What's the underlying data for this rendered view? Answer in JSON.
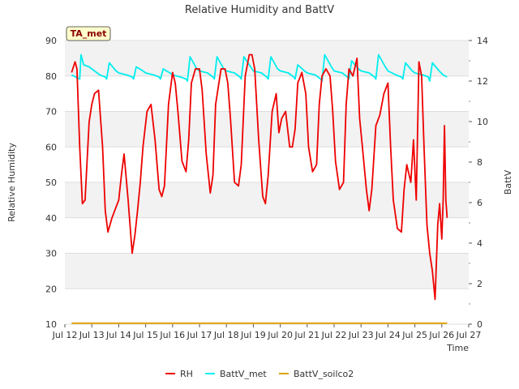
{
  "chart_data": {
    "type": "line",
    "title": "Relative Humidity and BattV",
    "xlabel": "Time",
    "ylabel": "Relative Humidity",
    "y2label": "BattV",
    "station_label": "TA_met",
    "xlim": [
      12,
      27
    ],
    "ylim": [
      10,
      90
    ],
    "y2lim": [
      0,
      14
    ],
    "x_ticks": [
      12,
      13,
      14,
      15,
      16,
      17,
      18,
      19,
      20,
      21,
      22,
      23,
      24,
      25,
      26,
      27
    ],
    "x_tick_labels": [
      "Jul 12",
      "Jul 13",
      "Jul 14",
      "Jul 15",
      "Jul 16",
      "Jul 17",
      "Jul 18",
      "Jul 19",
      "Jul 20",
      "Jul 21",
      "Jul 22",
      "Jul 23",
      "Jul 24",
      "Jul 25",
      "Jul 26",
      "Jul 27"
    ],
    "y_ticks": [
      10,
      20,
      30,
      40,
      50,
      60,
      70,
      80,
      90
    ],
    "y_tick_labels": [
      "10",
      "20",
      "30",
      "40",
      "50",
      "60",
      "70",
      "80",
      "90"
    ],
    "y2_ticks": [
      0,
      2,
      4,
      6,
      8,
      10,
      12,
      14
    ],
    "y2_tick_labels": [
      "0",
      "2",
      "4",
      "6",
      "8",
      "10",
      "12",
      "14"
    ],
    "grid": "horizontal bands",
    "legend_position": "bottom-center",
    "series": [
      {
        "name": "RH",
        "color": "#ee0000",
        "axis": "left",
        "x": [
          12.25,
          12.38,
          12.45,
          12.55,
          12.65,
          12.75,
          12.9,
          13.0,
          13.1,
          13.25,
          13.4,
          13.5,
          13.6,
          13.75,
          13.9,
          14.0,
          14.1,
          14.2,
          14.35,
          14.5,
          14.6,
          14.7,
          14.8,
          14.9,
          15.05,
          15.2,
          15.35,
          15.5,
          15.6,
          15.7,
          15.85,
          16.0,
          16.1,
          16.2,
          16.35,
          16.5,
          16.6,
          16.7,
          16.85,
          17.0,
          17.1,
          17.25,
          17.4,
          17.5,
          17.6,
          17.8,
          17.95,
          18.05,
          18.15,
          18.3,
          18.45,
          18.55,
          18.7,
          18.85,
          18.95,
          19.05,
          19.2,
          19.35,
          19.45,
          19.55,
          19.7,
          19.85,
          19.95,
          20.05,
          20.2,
          20.35,
          20.45,
          20.55,
          20.65,
          20.8,
          20.95,
          21.05,
          21.2,
          21.35,
          21.45,
          21.55,
          21.7,
          21.85,
          21.95,
          22.05,
          22.2,
          22.35,
          22.45,
          22.55,
          22.7,
          22.85,
          22.95,
          23.05,
          23.2,
          23.3,
          23.4,
          23.55,
          23.7,
          23.85,
          24.0,
          24.1,
          24.2,
          24.35,
          24.5,
          24.6,
          24.7,
          24.85,
          24.95,
          25.05,
          25.15,
          25.25,
          25.35,
          25.45,
          25.55,
          25.65,
          25.75,
          25.85,
          25.92,
          26.0,
          26.05,
          26.1,
          26.15,
          26.2
        ],
        "y": [
          81,
          84,
          82,
          60,
          44,
          45,
          67,
          72,
          75,
          76,
          60,
          42,
          36,
          40,
          43,
          45,
          52,
          58,
          45,
          30,
          35,
          42,
          50,
          60,
          70,
          72,
          62,
          48,
          46,
          49,
          72,
          81,
          78,
          70,
          56,
          53,
          62,
          78,
          82,
          82,
          76,
          58,
          47,
          52,
          72,
          82,
          82,
          78,
          68,
          50,
          49,
          55,
          80,
          86,
          86,
          82,
          62,
          46,
          44,
          52,
          70,
          75,
          64,
          68,
          70,
          60,
          60,
          65,
          78,
          81,
          75,
          60,
          53,
          55,
          72,
          80,
          82,
          80,
          70,
          56,
          48,
          50,
          72,
          82,
          80,
          85,
          68,
          60,
          48,
          42,
          48,
          66,
          69,
          75,
          78,
          60,
          45,
          37,
          36,
          48,
          55,
          50,
          62,
          45,
          84,
          80,
          58,
          38,
          30,
          25,
          17,
          38,
          44,
          34,
          45,
          66,
          45,
          40
        ]
      },
      {
        "name": "BattV_met",
        "color": "#00eeee",
        "axis": "right",
        "x": [
          12.25,
          12.4,
          12.55,
          12.6,
          12.7,
          12.9,
          13.0,
          13.3,
          13.5,
          13.55,
          13.65,
          13.9,
          14.0,
          14.3,
          14.5,
          14.55,
          14.65,
          14.9,
          15.0,
          15.3,
          15.5,
          15.55,
          15.65,
          15.9,
          16.0,
          16.3,
          16.5,
          16.55,
          16.65,
          16.9,
          17.0,
          17.3,
          17.5,
          17.55,
          17.65,
          17.9,
          18.0,
          18.3,
          18.5,
          18.55,
          18.65,
          18.9,
          19.0,
          19.3,
          19.5,
          19.55,
          19.65,
          19.9,
          20.0,
          20.3,
          20.5,
          20.55,
          20.65,
          20.9,
          21.0,
          21.3,
          21.5,
          21.55,
          21.65,
          21.9,
          22.0,
          22.3,
          22.5,
          22.55,
          22.65,
          22.9,
          23.0,
          23.3,
          23.5,
          23.55,
          23.65,
          23.9,
          24.0,
          24.3,
          24.5,
          24.55,
          24.65,
          24.9,
          25.0,
          25.3,
          25.5,
          25.55,
          25.65,
          25.9,
          26.05,
          26.2
        ],
        "y": [
          12.3,
          12.2,
          12.1,
          13.3,
          12.8,
          12.7,
          12.6,
          12.3,
          12.2,
          12.1,
          12.9,
          12.5,
          12.4,
          12.3,
          12.2,
          12.1,
          12.7,
          12.5,
          12.4,
          12.3,
          12.2,
          12.1,
          12.6,
          12.4,
          12.3,
          12.2,
          12.1,
          12.0,
          13.2,
          12.6,
          12.5,
          12.4,
          12.2,
          12.1,
          13.2,
          12.6,
          12.5,
          12.4,
          12.2,
          12.1,
          13.2,
          12.7,
          12.5,
          12.4,
          12.2,
          12.1,
          13.2,
          12.6,
          12.5,
          12.4,
          12.2,
          12.1,
          12.8,
          12.5,
          12.4,
          12.3,
          12.1,
          12.0,
          13.3,
          12.7,
          12.5,
          12.4,
          12.2,
          12.1,
          13.0,
          12.6,
          12.5,
          12.4,
          12.2,
          12.1,
          13.3,
          12.7,
          12.5,
          12.3,
          12.2,
          12.1,
          12.9,
          12.5,
          12.4,
          12.3,
          12.2,
          12.0,
          12.9,
          12.5,
          12.3,
          12.2
        ]
      },
      {
        "name": "BattV_soilco2",
        "color": "#e0a000",
        "axis": "right",
        "x": [
          12.25,
          26.2
        ],
        "y": [
          0.05,
          0.05
        ]
      }
    ]
  }
}
